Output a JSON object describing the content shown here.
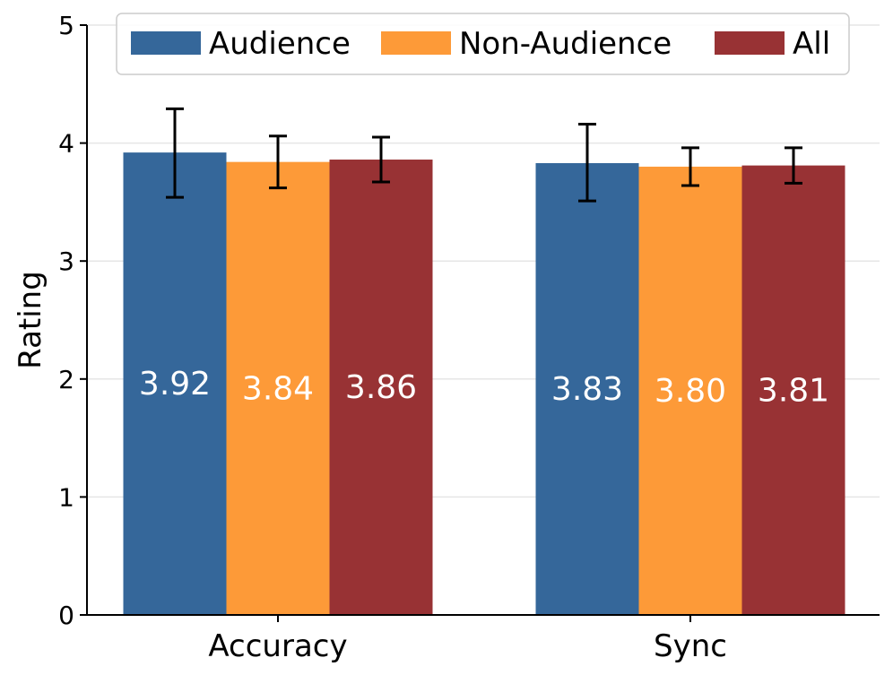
{
  "chart_data": {
    "type": "bar",
    "categories": [
      "Accuracy",
      "Sync"
    ],
    "ylabel": "Rating",
    "xlabel": "",
    "ylim": [
      0,
      5
    ],
    "yticks": [
      0,
      1,
      2,
      3,
      4,
      5
    ],
    "grid": true,
    "legend_position": "top-right",
    "series": [
      {
        "name": "Audience",
        "color": "#35679a",
        "values": [
          3.92,
          3.83
        ],
        "err_low": [
          3.54,
          3.51
        ],
        "err_high": [
          4.29,
          4.16
        ],
        "labels": [
          "3.92",
          "3.83"
        ]
      },
      {
        "name": "Non-Audience",
        "color": "#fd9a38",
        "values": [
          3.84,
          3.8
        ],
        "err_low": [
          3.62,
          3.64
        ],
        "err_high": [
          4.06,
          3.96
        ],
        "labels": [
          "3.84",
          "3.80"
        ]
      },
      {
        "name": "All",
        "color": "#983234",
        "values": [
          3.86,
          3.81
        ],
        "err_low": [
          3.67,
          3.66
        ],
        "err_high": [
          4.05,
          3.96
        ],
        "labels": [
          "3.86",
          "3.81"
        ]
      }
    ]
  }
}
